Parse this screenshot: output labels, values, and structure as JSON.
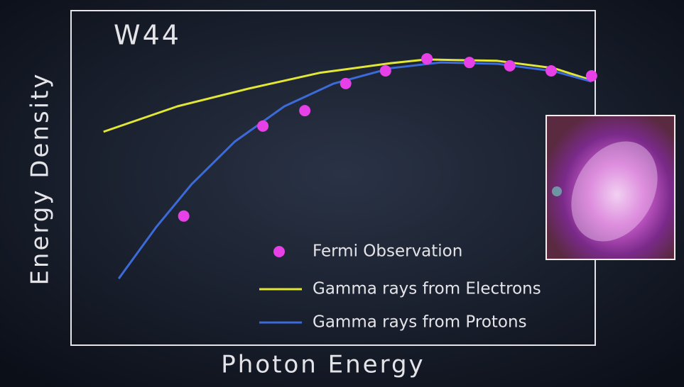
{
  "chart_data": {
    "type": "line",
    "title": "W44",
    "x_label": "Photon Energy",
    "y_label": "Energy Density",
    "xlim": [
      0,
      100
    ],
    "ylim": [
      0,
      100
    ],
    "grid": false,
    "legend": "lower right",
    "series": [
      {
        "name": "Fermi Observation",
        "mode": "markers",
        "color": "#e640e6",
        "x": [
          21.5,
          36.6,
          44.6,
          52.4,
          60.0,
          67.9,
          76.0,
          83.7,
          91.6,
          99.3
        ],
        "values": [
          38.6,
          65.5,
          70.1,
          78.2,
          82.0,
          85.6,
          84.5,
          83.5,
          82.0,
          80.5
        ]
      },
      {
        "name": "Gamma rays from Electrons",
        "mode": "lines",
        "color": "#e2e636",
        "x": [
          6.2,
          20.3,
          33.9,
          47.4,
          61.0,
          67.8,
          81.3,
          92.1,
          99.3
        ],
        "values": [
          63.8,
          71.4,
          76.7,
          81.4,
          84.3,
          85.4,
          85.0,
          82.8,
          79.2
        ]
      },
      {
        "name": "Gamma rays from Protons",
        "mode": "lines",
        "color": "#3c6ad8",
        "x": [
          9.1,
          16.3,
          23.0,
          31.2,
          40.7,
          50.1,
          61.0,
          70.5,
          81.3,
          92.1,
          99.3
        ],
        "values": [
          19.9,
          35.4,
          48.1,
          60.8,
          71.4,
          78.2,
          82.8,
          84.5,
          84.1,
          81.9,
          78.8
        ]
      }
    ]
  }
}
